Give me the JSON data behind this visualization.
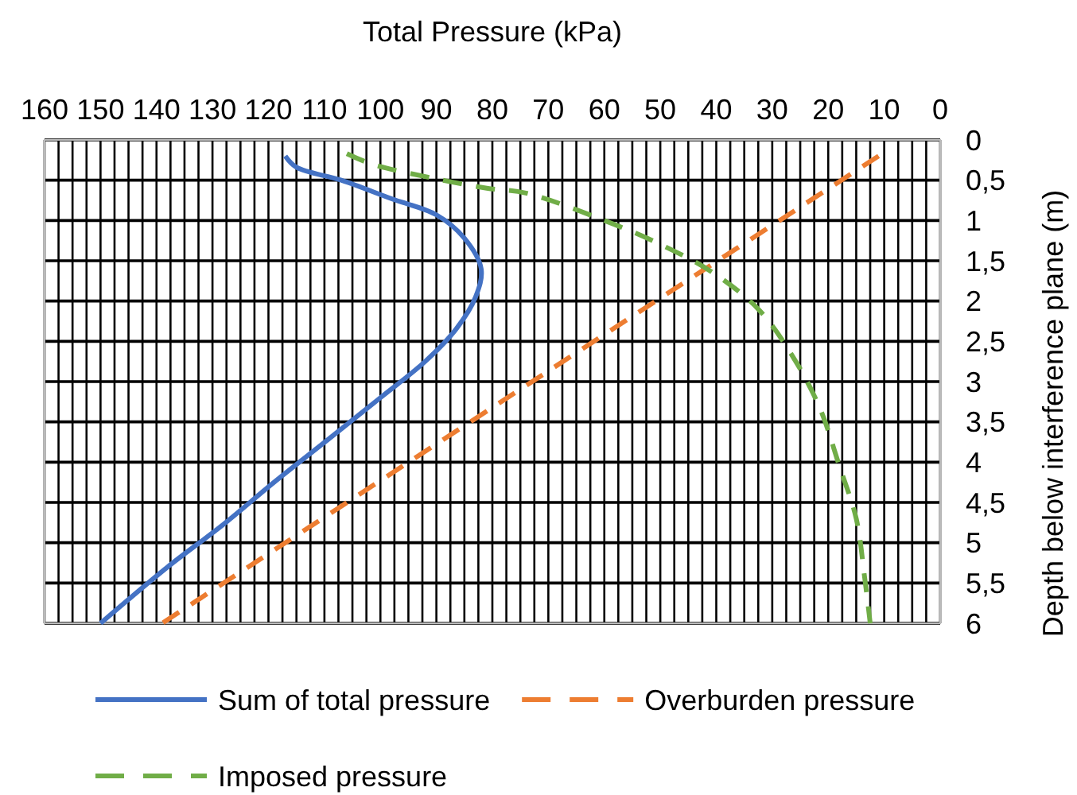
{
  "chart_data": {
    "type": "line",
    "xlabel": "Total Pressure (kPa)",
    "ylabel": "Depth below interference plane (m)",
    "xlim": [
      160,
      0
    ],
    "ylim": [
      6,
      0
    ],
    "xticks": [
      0,
      {
        "value": 2.5,
        "label": null
      },
      10,
      {
        "value": 12.5,
        "label": null
      },
      20,
      {
        "value": 22.5,
        "label": null
      },
      30,
      {
        "value": 32.5,
        "label": null
      },
      40,
      {
        "value": 42.5,
        "label": null
      },
      50,
      {
        "value": 52.5,
        "label": null
      },
      60,
      {
        "value": 62.5,
        "label": null
      },
      70,
      {
        "value": 72.5,
        "label": null
      },
      80,
      {
        "value": 82.5,
        "label": null
      },
      90,
      {
        "value": 92.5,
        "label": null
      },
      100,
      {
        "value": 102.5,
        "label": null
      },
      110,
      {
        "value": 112.5,
        "label": null
      },
      120,
      {
        "value": 122.5,
        "label": null
      },
      130,
      {
        "value": 132.5,
        "label": null
      },
      140,
      {
        "value": 142.5,
        "label": null
      },
      150,
      {
        "value": 152.5,
        "label": null
      },
      160,
      {
        "value": 5,
        "label": null
      },
      {
        "value": 7.5,
        "label": null
      },
      {
        "value": 15,
        "label": null
      },
      {
        "value": 17.5,
        "label": null
      },
      {
        "value": 25,
        "label": null
      },
      {
        "value": 27.5,
        "label": null
      },
      {
        "value": 35,
        "label": null
      },
      {
        "value": 37.5,
        "label": null
      },
      {
        "value": 45,
        "label": null
      },
      {
        "value": 47.5,
        "label": null
      },
      {
        "value": 55,
        "label": null
      },
      {
        "value": 57.5,
        "label": null
      },
      {
        "value": 65,
        "label": null
      },
      {
        "value": 67.5,
        "label": null
      },
      {
        "value": 75,
        "label": null
      },
      {
        "value": 77.5,
        "label": null
      },
      {
        "value": 85,
        "label": null
      },
      {
        "value": 87.5,
        "label": null
      },
      {
        "value": 95,
        "label": null
      },
      {
        "value": 97.5,
        "label": null
      },
      {
        "value": 105,
        "label": null
      },
      {
        "value": 107.5,
        "label": null
      },
      {
        "value": 115,
        "label": null
      },
      {
        "value": 117.5,
        "label": null
      },
      {
        "value": 125,
        "label": null
      },
      {
        "value": 127.5,
        "label": null
      },
      {
        "value": 135,
        "label": null
      },
      {
        "value": 137.5,
        "label": null
      },
      {
        "value": 145,
        "label": null
      },
      {
        "value": 147.5,
        "label": null
      },
      {
        "value": 155,
        "label": null
      },
      {
        "value": 157.5,
        "label": null
      }
    ],
    "yticks": [
      0,
      {
        "value": 0.5,
        "label": "0,5"
      },
      1,
      {
        "value": 1.5,
        "label": "1,5"
      },
      2,
      {
        "value": 2.5,
        "label": "2,5"
      },
      3,
      {
        "value": 3.5,
        "label": "3,5"
      },
      4,
      {
        "value": 4.5,
        "label": "4,5"
      },
      5,
      {
        "value": 5.5,
        "label": "5,5"
      },
      6
    ],
    "grid": true,
    "legend": "bottom",
    "series": [
      {
        "name": "Sum of total pressure",
        "color": "#4472c4",
        "line_style": "solid",
        "x": [
          117,
          115,
          107,
          98,
          90,
          85,
          82,
          83,
          86.5,
          92,
          100,
          109,
          119,
          128,
          138,
          150
        ],
        "values": [
          0.2,
          0.34,
          0.5,
          0.73,
          0.93,
          1.22,
          1.6,
          1.95,
          2.35,
          2.75,
          3.2,
          3.7,
          4.25,
          4.77,
          5.3,
          6
        ]
      },
      {
        "name": "Overburden pressure",
        "color": "#ed7d31",
        "line_style": "dashed",
        "x": [
          11,
          74,
          139
        ],
        "values": [
          0.2,
          3.05,
          6
        ]
      },
      {
        "name": "Imposed pressure",
        "color": "#70ad47",
        "line_style": "dashed",
        "x": [
          106,
          101.5,
          91,
          81,
          74,
          60,
          50.5,
          41,
          32.5,
          26.5,
          21.5,
          18,
          15,
          13.5,
          12.5
        ],
        "values": [
          0.17,
          0.3,
          0.47,
          0.6,
          0.66,
          1,
          1.28,
          1.63,
          2.1,
          2.67,
          3.33,
          4.05,
          4.7,
          5.43,
          6
        ]
      }
    ]
  }
}
